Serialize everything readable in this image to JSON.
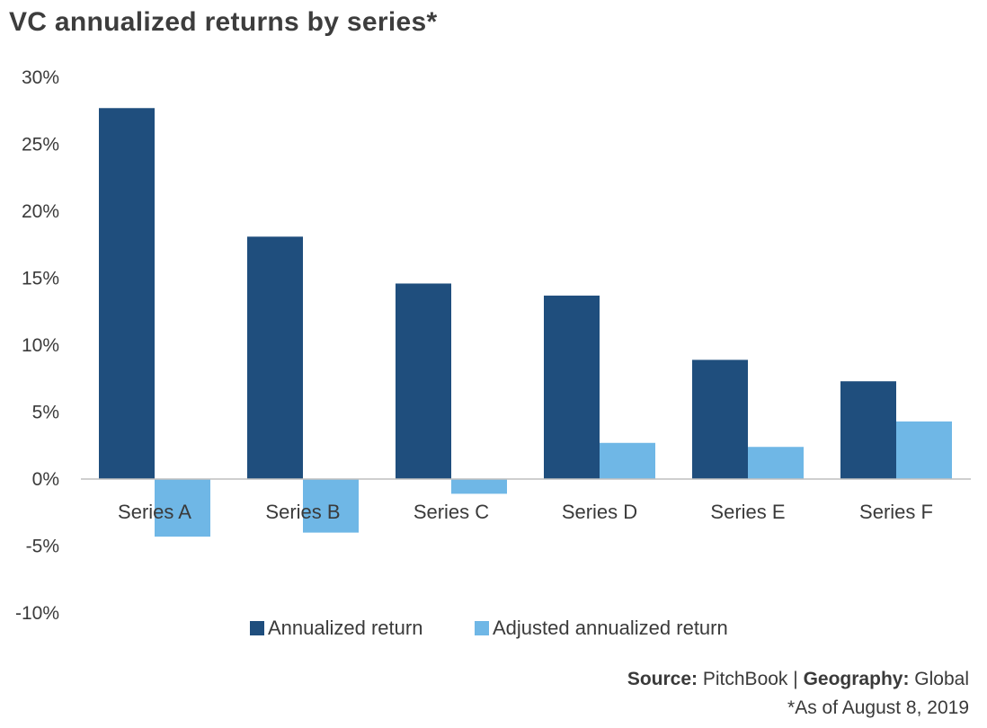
{
  "chart_data": {
    "type": "bar",
    "title": "VC annualized returns by series*",
    "categories": [
      "Series A",
      "Series B",
      "Series C",
      "Series D",
      "Series E",
      "Series F"
    ],
    "series": [
      {
        "name": "Annualized return",
        "color": "#1f4e7d",
        "values": [
          27.7,
          18.1,
          14.6,
          13.7,
          8.9,
          7.3
        ]
      },
      {
        "name": "Adjusted annualized return",
        "color": "#6fb7e6",
        "values": [
          -4.3,
          -4.0,
          -1.1,
          2.7,
          2.4,
          4.3
        ]
      }
    ],
    "ylim": [
      -10,
      30
    ],
    "yticks": [
      30,
      25,
      20,
      15,
      10,
      5,
      0,
      -5,
      -10
    ],
    "ytick_labels": [
      "30%",
      "25%",
      "20%",
      "15%",
      "10%",
      "5%",
      "0%",
      "-5%",
      "-10%"
    ],
    "legend_position": "bottom-center",
    "grid": false,
    "xlabel": "",
    "ylabel": ""
  },
  "source": {
    "source_label": "Source:",
    "source_value": "PitchBook",
    "separator": "|",
    "geography_label": "Geography:",
    "geography_value": "Global",
    "note": "*As of August 8, 2019"
  }
}
